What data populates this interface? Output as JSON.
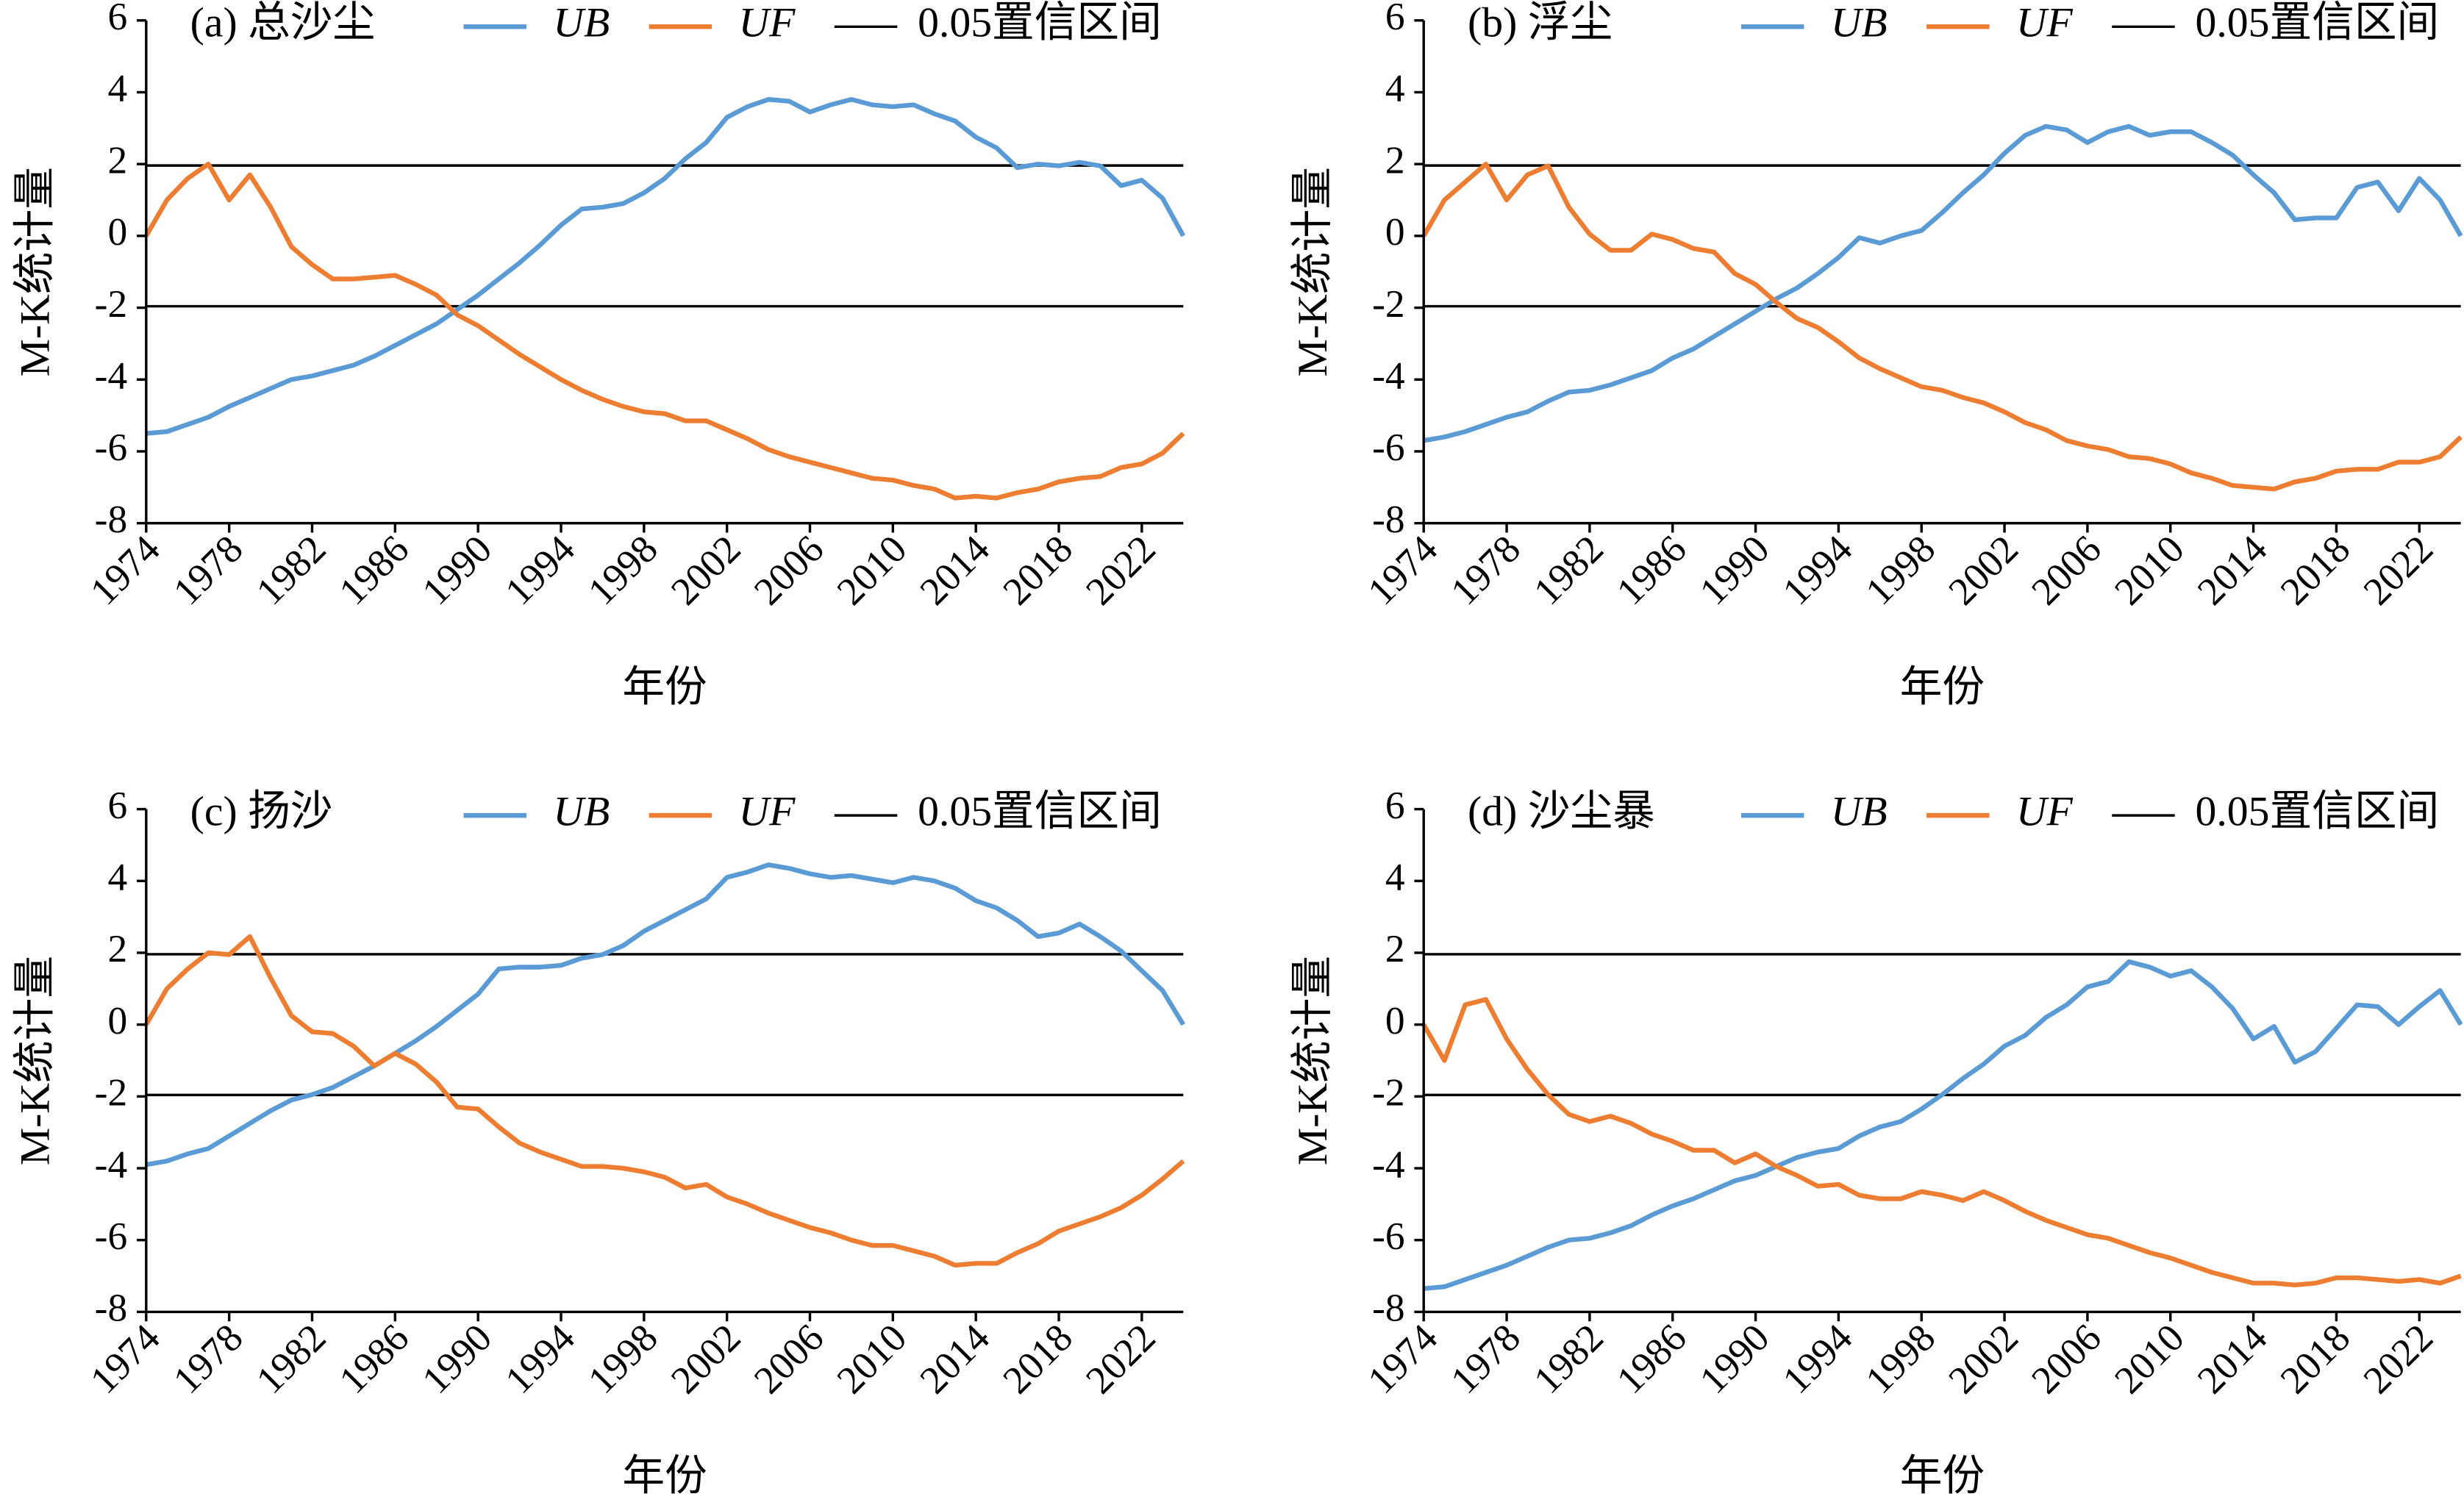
{
  "chart_data": [
    {
      "type": "line",
      "title": "(a) 总沙尘",
      "xlabel": "年份",
      "ylabel": "M-K统计量",
      "x": [
        1974,
        1975,
        1976,
        1977,
        1978,
        1979,
        1980,
        1981,
        1982,
        1983,
        1984,
        1985,
        1986,
        1987,
        1988,
        1989,
        1990,
        1991,
        1992,
        1993,
        1994,
        1995,
        1996,
        1997,
        1998,
        1999,
        2000,
        2001,
        2002,
        2003,
        2004,
        2005,
        2006,
        2007,
        2008,
        2009,
        2010,
        2011,
        2012,
        2013,
        2014,
        2015,
        2016,
        2017,
        2018,
        2019,
        2020,
        2021,
        2022,
        2023,
        2024
      ],
      "xlim": [
        1974,
        2024
      ],
      "xticks": [
        1974,
        1978,
        1982,
        1986,
        1990,
        1994,
        1998,
        2002,
        2006,
        2010,
        2014,
        2018,
        2022
      ],
      "ylim": [
        -8,
        6
      ],
      "yticks": [
        -8,
        -6,
        -4,
        -2,
        0,
        2,
        4,
        6
      ],
      "series": [
        {
          "name": "UB",
          "color": "#5b9bd5",
          "values": [
            -5.5,
            -5.45,
            -5.25,
            -5.05,
            -4.75,
            -4.5,
            -4.25,
            -4.0,
            -3.9,
            -3.75,
            -3.6,
            -3.35,
            -3.05,
            -2.75,
            -2.45,
            -2.05,
            -1.65,
            -1.2,
            -0.75,
            -0.25,
            0.3,
            0.75,
            0.8,
            0.9,
            1.2,
            1.6,
            2.15,
            2.6,
            3.3,
            3.6,
            3.8,
            3.75,
            3.45,
            3.65,
            3.8,
            3.65,
            3.6,
            3.65,
            3.4,
            3.2,
            2.75,
            2.45,
            1.9,
            2.0,
            1.95,
            2.05,
            1.95,
            1.4,
            1.55,
            1.05,
            0
          ]
        },
        {
          "name": "UF",
          "color": "#ed7d31",
          "values": [
            0,
            1.0,
            1.6,
            2.0,
            1.0,
            1.7,
            0.8,
            -0.3,
            -0.8,
            -1.2,
            -1.2,
            -1.15,
            -1.1,
            -1.35,
            -1.65,
            -2.2,
            -2.5,
            -2.9,
            -3.3,
            -3.65,
            -4.0,
            -4.3,
            -4.55,
            -4.75,
            -4.9,
            -4.95,
            -5.15,
            -5.15,
            -5.4,
            -5.65,
            -5.95,
            -6.15,
            -6.3,
            -6.45,
            -6.6,
            -6.75,
            -6.8,
            -6.95,
            -7.05,
            -7.3,
            -7.25,
            -7.3,
            -7.15,
            -7.05,
            -6.85,
            -6.75,
            -6.7,
            -6.45,
            -6.35,
            -6.05,
            -5.5
          ]
        }
      ],
      "confidence": {
        "name": "0.05置信区间",
        "color": "#000000",
        "values": [
          1.96,
          -1.96
        ]
      }
    },
    {
      "type": "line",
      "title": "(b) 浮尘",
      "xlabel": "年份",
      "ylabel": "M-K统计量",
      "x": [
        1974,
        1975,
        1976,
        1977,
        1978,
        1979,
        1980,
        1981,
        1982,
        1983,
        1984,
        1985,
        1986,
        1987,
        1988,
        1989,
        1990,
        1991,
        1992,
        1993,
        1994,
        1995,
        1996,
        1997,
        1998,
        1999,
        2000,
        2001,
        2002,
        2003,
        2004,
        2005,
        2006,
        2007,
        2008,
        2009,
        2010,
        2011,
        2012,
        2013,
        2014,
        2015,
        2016,
        2017,
        2018,
        2019,
        2020,
        2021,
        2022,
        2023,
        2024
      ],
      "xlim": [
        1974,
        2024
      ],
      "xticks": [
        1974,
        1978,
        1982,
        1986,
        1990,
        1994,
        1998,
        2002,
        2006,
        2010,
        2014,
        2018,
        2022
      ],
      "ylim": [
        -8,
        6
      ],
      "yticks": [
        -8,
        -6,
        -4,
        -2,
        0,
        2,
        4,
        6
      ],
      "series": [
        {
          "name": "UB",
          "color": "#5b9bd5",
          "values": [
            -5.7,
            -5.6,
            -5.45,
            -5.25,
            -5.05,
            -4.9,
            -4.6,
            -4.35,
            -4.3,
            -4.15,
            -3.95,
            -3.75,
            -3.4,
            -3.15,
            -2.8,
            -2.45,
            -2.1,
            -1.75,
            -1.45,
            -1.05,
            -0.6,
            -0.05,
            -0.2,
            0.0,
            0.15,
            0.65,
            1.2,
            1.7,
            2.3,
            2.8,
            3.05,
            2.95,
            2.6,
            2.9,
            3.05,
            2.8,
            2.9,
            2.9,
            2.6,
            2.25,
            1.7,
            1.2,
            0.45,
            0.5,
            0.5,
            1.35,
            1.5,
            0.7,
            1.6,
            1.0,
            0
          ]
        },
        {
          "name": "UF",
          "color": "#ed7d31",
          "values": [
            0,
            1.0,
            1.5,
            2.0,
            1.0,
            1.7,
            1.95,
            0.8,
            0.05,
            -0.4,
            -0.4,
            0.05,
            -0.1,
            -0.35,
            -0.45,
            -1.05,
            -1.35,
            -1.85,
            -2.3,
            -2.55,
            -2.95,
            -3.4,
            -3.7,
            -3.95,
            -4.2,
            -4.3,
            -4.5,
            -4.65,
            -4.9,
            -5.2,
            -5.4,
            -5.7,
            -5.85,
            -5.95,
            -6.15,
            -6.2,
            -6.35,
            -6.6,
            -6.75,
            -6.95,
            -7.0,
            -7.05,
            -6.85,
            -6.75,
            -6.55,
            -6.5,
            -6.5,
            -6.3,
            -6.3,
            -6.15,
            -5.6
          ]
        }
      ],
      "confidence": {
        "name": "0.05置信区间",
        "color": "#000000",
        "values": [
          1.96,
          -1.96
        ]
      }
    },
    {
      "type": "line",
      "title": "(c) 扬沙",
      "xlabel": "年份",
      "ylabel": "M-K统计量",
      "x": [
        1974,
        1975,
        1976,
        1977,
        1978,
        1979,
        1980,
        1981,
        1982,
        1983,
        1984,
        1985,
        1986,
        1987,
        1988,
        1989,
        1990,
        1991,
        1992,
        1993,
        1994,
        1995,
        1996,
        1997,
        1998,
        1999,
        2000,
        2001,
        2002,
        2003,
        2004,
        2005,
        2006,
        2007,
        2008,
        2009,
        2010,
        2011,
        2012,
        2013,
        2014,
        2015,
        2016,
        2017,
        2018,
        2019,
        2020,
        2021,
        2022,
        2023,
        2024
      ],
      "xlim": [
        1974,
        2024
      ],
      "xticks": [
        1974,
        1978,
        1982,
        1986,
        1990,
        1994,
        1998,
        2002,
        2006,
        2010,
        2014,
        2018,
        2022
      ],
      "ylim": [
        -8,
        6
      ],
      "yticks": [
        -8,
        -6,
        -4,
        -2,
        0,
        2,
        4,
        6
      ],
      "series": [
        {
          "name": "UB",
          "color": "#5b9bd5",
          "values": [
            -3.9,
            -3.8,
            -3.6,
            -3.45,
            -3.1,
            -2.75,
            -2.4,
            -2.1,
            -1.95,
            -1.75,
            -1.45,
            -1.15,
            -0.8,
            -0.45,
            -0.05,
            0.4,
            0.85,
            1.55,
            1.6,
            1.6,
            1.65,
            1.85,
            1.95,
            2.2,
            2.6,
            2.9,
            3.2,
            3.5,
            4.1,
            4.25,
            4.45,
            4.35,
            4.2,
            4.1,
            4.15,
            4.05,
            3.95,
            4.1,
            4.0,
            3.8,
            3.45,
            3.25,
            2.9,
            2.45,
            2.55,
            2.8,
            2.45,
            2.05,
            1.5,
            0.95,
            0
          ]
        },
        {
          "name": "UF",
          "color": "#ed7d31",
          "values": [
            0,
            1.0,
            1.55,
            2.0,
            1.95,
            2.45,
            1.3,
            0.25,
            -0.2,
            -0.25,
            -0.6,
            -1.15,
            -0.8,
            -1.1,
            -1.6,
            -2.3,
            -2.35,
            -2.85,
            -3.3,
            -3.55,
            -3.75,
            -3.95,
            -3.95,
            -4.0,
            -4.1,
            -4.25,
            -4.55,
            -4.45,
            -4.8,
            -5.0,
            -5.25,
            -5.45,
            -5.65,
            -5.8,
            -6.0,
            -6.15,
            -6.15,
            -6.3,
            -6.45,
            -6.7,
            -6.65,
            -6.65,
            -6.35,
            -6.1,
            -5.75,
            -5.55,
            -5.35,
            -5.1,
            -4.75,
            -4.3,
            -3.8
          ]
        }
      ],
      "confidence": {
        "name": "0.05置信区间",
        "color": "#000000",
        "values": [
          1.96,
          -1.96
        ]
      }
    },
    {
      "type": "line",
      "title": "(d) 沙尘暴",
      "xlabel": "年份",
      "ylabel": "M-K统计量",
      "x": [
        1974,
        1975,
        1976,
        1977,
        1978,
        1979,
        1980,
        1981,
        1982,
        1983,
        1984,
        1985,
        1986,
        1987,
        1988,
        1989,
        1990,
        1991,
        1992,
        1993,
        1994,
        1995,
        1996,
        1997,
        1998,
        1999,
        2000,
        2001,
        2002,
        2003,
        2004,
        2005,
        2006,
        2007,
        2008,
        2009,
        2010,
        2011,
        2012,
        2013,
        2014,
        2015,
        2016,
        2017,
        2018,
        2019,
        2020,
        2021,
        2022,
        2023,
        2024
      ],
      "xlim": [
        1974,
        2024
      ],
      "xticks": [
        1974,
        1978,
        1982,
        1986,
        1990,
        1994,
        1998,
        2002,
        2006,
        2010,
        2014,
        2018,
        2022
      ],
      "ylim": [
        -8,
        6
      ],
      "yticks": [
        -8,
        -6,
        -4,
        -2,
        0,
        2,
        4,
        6
      ],
      "series": [
        {
          "name": "UB",
          "color": "#5b9bd5",
          "values": [
            -7.35,
            -7.3,
            -7.1,
            -6.9,
            -6.7,
            -6.45,
            -6.2,
            -6.0,
            -5.95,
            -5.8,
            -5.6,
            -5.3,
            -5.05,
            -4.85,
            -4.6,
            -4.35,
            -4.2,
            -3.95,
            -3.7,
            -3.55,
            -3.45,
            -3.1,
            -2.85,
            -2.7,
            -2.35,
            -1.95,
            -1.5,
            -1.1,
            -0.6,
            -0.3,
            0.2,
            0.55,
            1.05,
            1.2,
            1.75,
            1.6,
            1.35,
            1.5,
            1.05,
            0.45,
            -0.4,
            -0.05,
            -1.05,
            -0.75,
            -0.1,
            0.55,
            0.5,
            0.0,
            0.5,
            0.95,
            0.0
          ]
        },
        {
          "name": "UF",
          "color": "#ed7d31",
          "values": [
            0,
            -1.0,
            0.55,
            0.7,
            -0.4,
            -1.25,
            -1.95,
            -2.5,
            -2.7,
            -2.55,
            -2.75,
            -3.05,
            -3.25,
            -3.5,
            -3.5,
            -3.85,
            -3.6,
            -3.95,
            -4.2,
            -4.5,
            -4.45,
            -4.75,
            -4.85,
            -4.85,
            -4.65,
            -4.75,
            -4.9,
            -4.65,
            -4.9,
            -5.2,
            -5.45,
            -5.65,
            -5.85,
            -5.95,
            -6.15,
            -6.35,
            -6.5,
            -6.7,
            -6.9,
            -7.05,
            -7.2,
            -7.2,
            -7.25,
            -7.2,
            -7.05,
            -7.05,
            -7.1,
            -7.15,
            -7.1,
            -7.2,
            -7.0
          ]
        }
      ],
      "confidence": {
        "name": "0.05置信区间",
        "color": "#000000",
        "values": [
          1.96,
          -1.96
        ]
      }
    }
  ]
}
